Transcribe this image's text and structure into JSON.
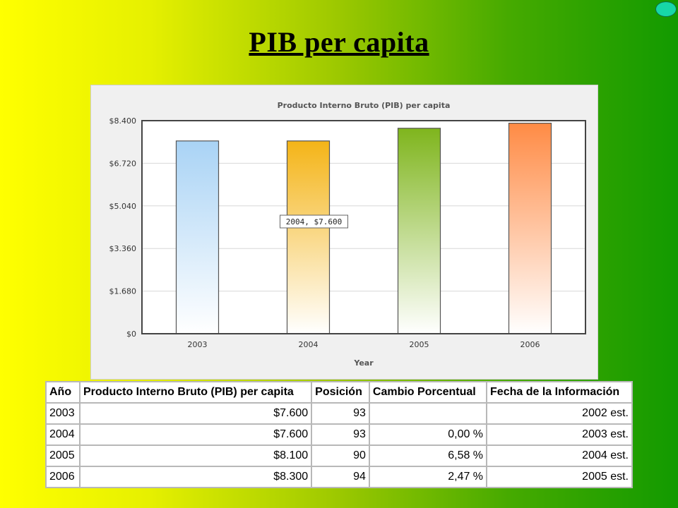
{
  "slide": {
    "title": "PIB per capita"
  },
  "chart_data": {
    "type": "bar",
    "title": "Producto Interno Bruto (PIB) per capita",
    "xlabel": "Year",
    "ylabel": "",
    "categories": [
      "2003",
      "2004",
      "2005",
      "2006"
    ],
    "values": [
      7600,
      7600,
      8100,
      8300
    ],
    "ylim": [
      0,
      8400
    ],
    "yticks": [
      0,
      1680,
      3360,
      5040,
      6720,
      8400
    ],
    "ytick_labels": [
      "$0",
      "$1.680",
      "$3.360",
      "$5.040",
      "$6.720",
      "$8.400"
    ],
    "colors": [
      "#a9d3f5",
      "#f4b417",
      "#7fb51d",
      "#ff8b45"
    ],
    "grid": true,
    "tooltip": {
      "text": "2004, $7.600"
    }
  },
  "table": {
    "headers": [
      "Año",
      "Producto Interno Bruto (PIB) per capita",
      "Posición",
      "Cambio Porcentual",
      "Fecha de la Información"
    ],
    "rows": [
      [
        "2003",
        "$7.600",
        "93",
        "",
        "2002 est."
      ],
      [
        "2004",
        "$7.600",
        "93",
        "0,00 %",
        "2003 est."
      ],
      [
        "2005",
        "$8.100",
        "90",
        "6,58 %",
        "2004 est."
      ],
      [
        "2006",
        "$8.300",
        "94",
        "2,47 %",
        "2005 est."
      ]
    ]
  }
}
